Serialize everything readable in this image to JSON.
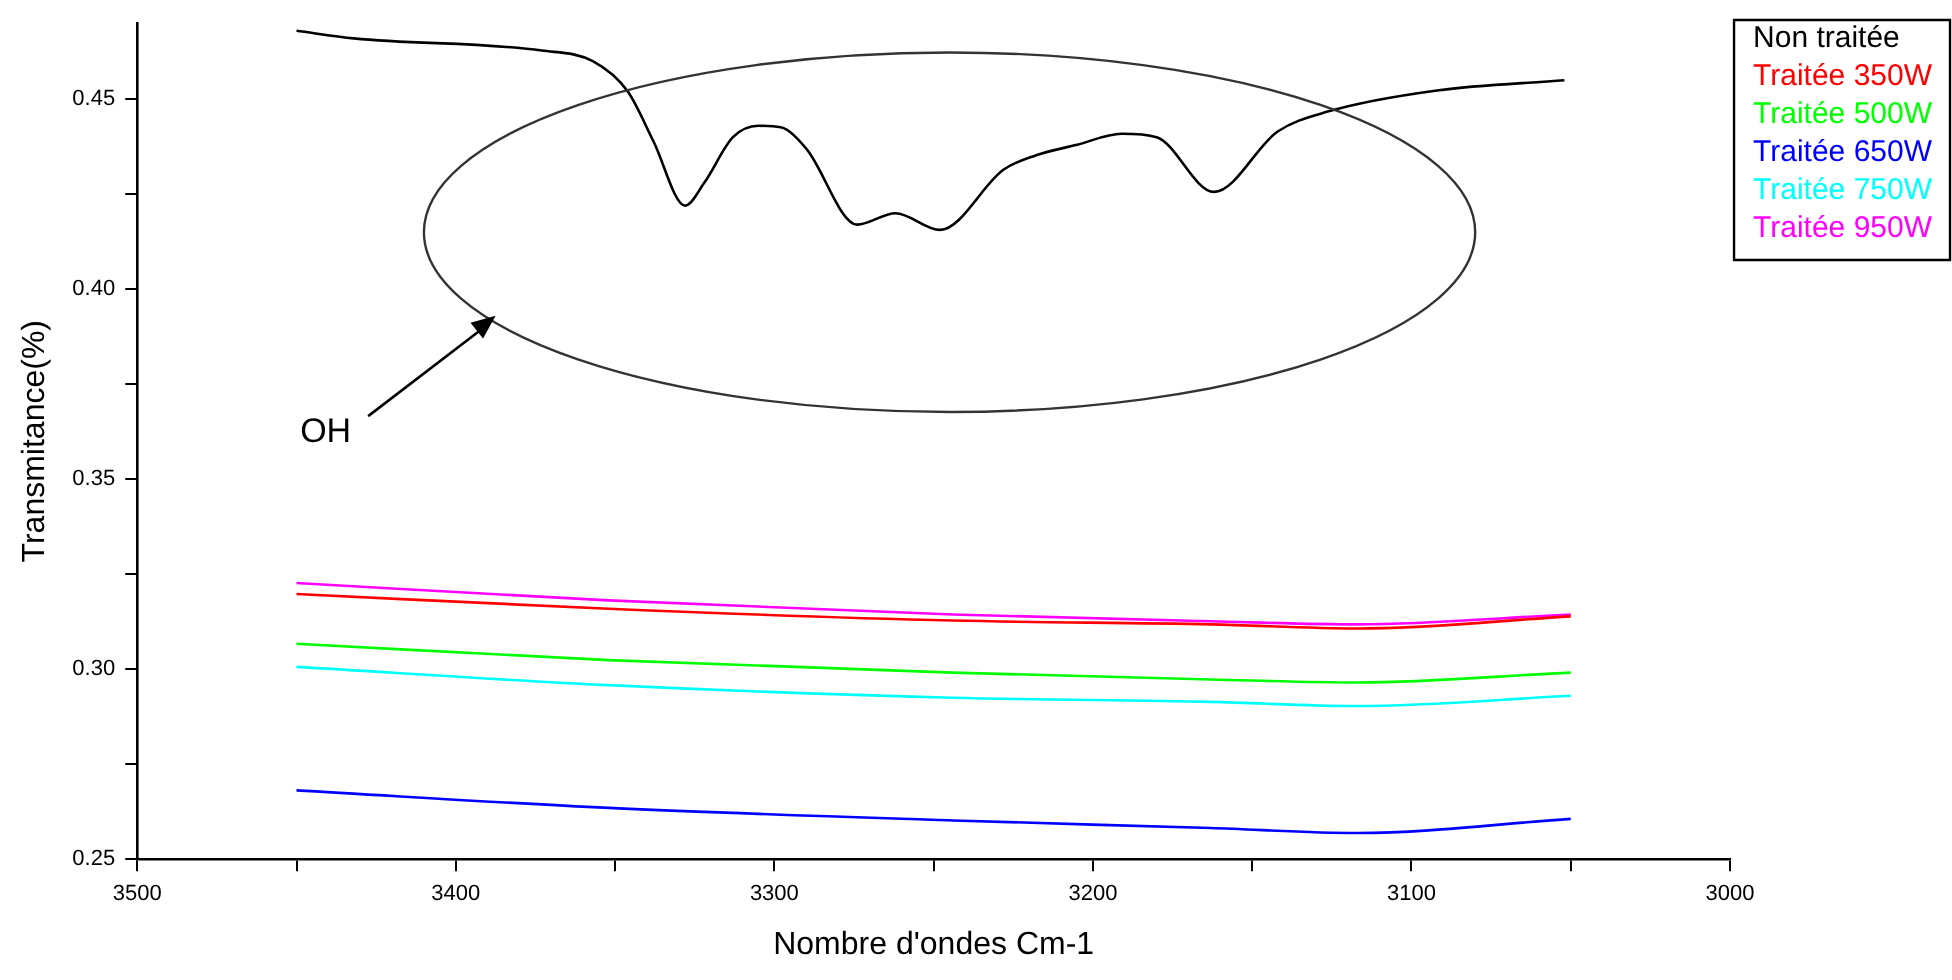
{
  "chart_data": {
    "type": "line",
    "xlabel": "Nombre d'ondes Cm-1",
    "ylabel": "Transmitance(%)",
    "legend": "top right",
    "grid": false,
    "marker": "none",
    "line_style": "solid",
    "xlim": [
      3500,
      3000
    ],
    "ylim": [
      0.25,
      0.47
    ],
    "xticks": [
      3500,
      {
        "value": 3450,
        "label": null
      },
      3400,
      {
        "value": 3350,
        "label": null
      },
      3300,
      {
        "value": 3250,
        "label": null
      },
      3200,
      {
        "value": 3150,
        "label": null
      },
      3100,
      {
        "value": 3050,
        "label": null
      },
      3000
    ],
    "yticks": [
      0.25,
      {
        "value": 0.275,
        "label": null
      },
      {
        "value": 0.3,
        "label": "0.30"
      },
      {
        "value": 0.325,
        "label": null
      },
      0.35,
      {
        "value": 0.375,
        "label": null
      },
      {
        "value": 0.4,
        "label": "0.40"
      },
      {
        "value": 0.425,
        "label": null
      },
      0.45
    ],
    "annotations": [
      "OH"
    ],
    "series": [
      {
        "name": "Non traitée",
        "color": "#000000",
        "x": [
          3450,
          3432,
          3373,
          3357,
          3346,
          3338,
          3328,
          3322,
          3313,
          3305,
          3298,
          3290,
          3274,
          3262,
          3248,
          3228,
          3218,
          3205,
          3191,
          3180,
          3162,
          3142,
          3126,
          3092,
          3052
        ],
        "values": [
          0.468,
          0.466,
          0.4628,
          0.46,
          0.452,
          0.439,
          0.422,
          0.428,
          0.44,
          0.443,
          0.4426,
          0.437,
          0.417,
          0.42,
          0.4156,
          0.4315,
          0.4352,
          0.438,
          0.4409,
          0.44,
          0.4256,
          0.4415,
          0.4468,
          0.4523,
          0.455
        ]
      },
      {
        "name": "Traitée 350W",
        "color": "#ff0000",
        "x": [
          3450,
          3352,
          3244,
          3163,
          3117,
          3050
        ],
        "values": [
          0.3198,
          0.3159,
          0.3128,
          0.3118,
          0.3107,
          0.3139
        ]
      },
      {
        "name": "Traitée 500W",
        "color": "#00ff00",
        "x": [
          3450,
          3352,
          3244,
          3163,
          3117,
          3050
        ],
        "values": [
          0.3067,
          0.3024,
          0.2991,
          0.2973,
          0.2965,
          0.2991
        ]
      },
      {
        "name": "Traitée 650W",
        "color": "#0000ff",
        "x": [
          3450,
          3352,
          3244,
          3163,
          3117,
          3050
        ],
        "values": [
          0.2681,
          0.2635,
          0.2602,
          0.2582,
          0.2569,
          0.2606
        ]
      },
      {
        "name": "Traitée 750W",
        "color": "#00ffff",
        "x": [
          3450,
          3352,
          3244,
          3163,
          3117,
          3050
        ],
        "values": [
          0.3006,
          0.2958,
          0.2925,
          0.2914,
          0.2903,
          0.293
        ]
      },
      {
        "name": "Traitée 950W",
        "color": "#ff00ff",
        "x": [
          3450,
          3352,
          3244,
          3163,
          3117,
          3050
        ],
        "values": [
          0.3227,
          0.3181,
          0.3144,
          0.3126,
          0.3118,
          0.3144
        ]
      }
    ]
  }
}
